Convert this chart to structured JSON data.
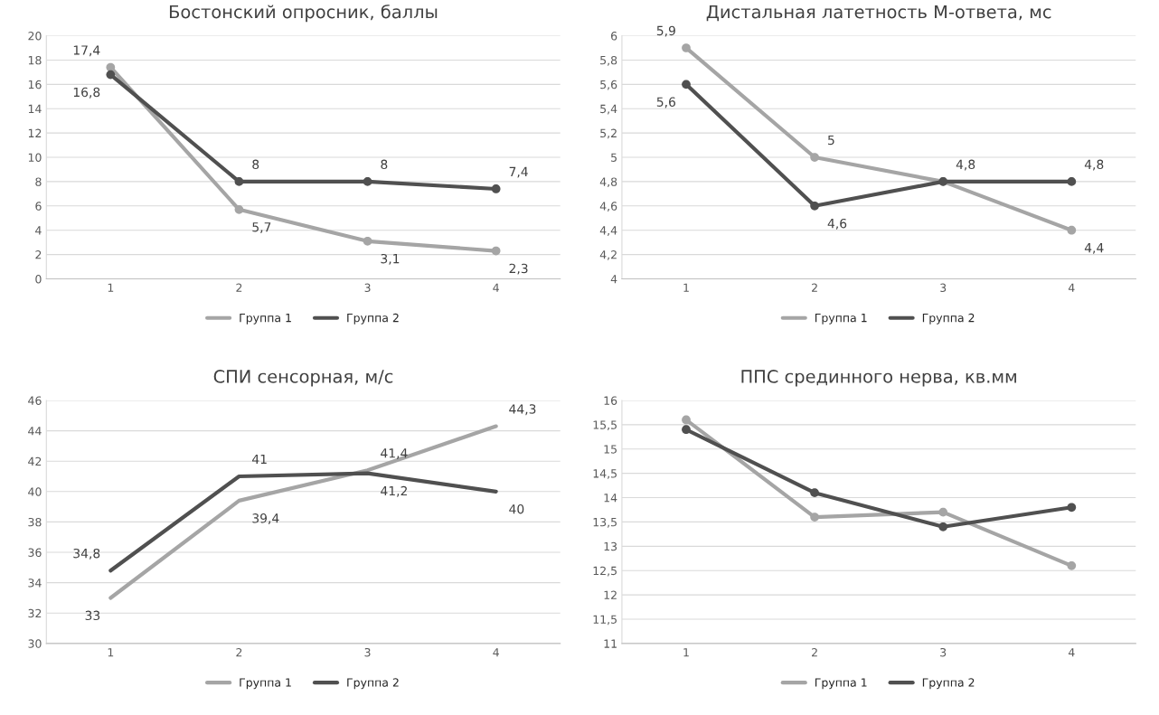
{
  "chart_data": [
    {
      "type": "line",
      "title": "Бостонский опросник, баллы",
      "categories": [
        "1",
        "2",
        "3",
        "4"
      ],
      "ylim": [
        0,
        20
      ],
      "yticks": [
        0,
        2,
        4,
        6,
        8,
        10,
        12,
        14,
        16,
        18,
        20
      ],
      "grid": "y",
      "legend": "bottom",
      "marker": "circle",
      "series": [
        {
          "name": "Группа 1",
          "color": "#a5a5a5",
          "values": [
            17.4,
            5.7,
            3.1,
            2.3
          ],
          "value_labels": [
            "17,4",
            "5,7",
            "3,1",
            "2,3"
          ]
        },
        {
          "name": "Группа 2",
          "color": "#505050",
          "values": [
            16.8,
            8,
            8,
            7.4
          ],
          "value_labels": [
            "16,8",
            "8",
            "8",
            "7,4"
          ]
        }
      ]
    },
    {
      "type": "line",
      "title": "Дистальная латетность М-ответа, мс",
      "categories": [
        "1",
        "2",
        "3",
        "4"
      ],
      "ylim": [
        4,
        6
      ],
      "yticks": [
        4,
        {
          "value": 4.2,
          "label": "4,2"
        },
        {
          "value": 4.4,
          "label": "4,4"
        },
        {
          "value": 4.6,
          "label": "4,6"
        },
        {
          "value": 4.8,
          "label": "4,8"
        },
        5,
        {
          "value": 5.2,
          "label": "5,2"
        },
        {
          "value": 5.4,
          "label": "5,4"
        },
        {
          "value": 5.6,
          "label": "5,6"
        },
        {
          "value": 5.8,
          "label": "5,8"
        },
        6
      ],
      "grid": "y",
      "legend": "bottom",
      "marker": "circle",
      "series": [
        {
          "name": "Группа 1",
          "color": "#a5a5a5",
          "values": [
            5.9,
            5,
            4.8,
            4.4
          ],
          "value_labels": [
            "5,9",
            "5",
            "4,8",
            "4,4"
          ]
        },
        {
          "name": "Группа 2",
          "color": "#505050",
          "values": [
            5.6,
            4.6,
            4.8,
            4.8
          ],
          "value_labels": [
            "5,6",
            "4,6",
            null,
            "4,8"
          ]
        }
      ]
    },
    {
      "type": "line",
      "title": "СПИ сенсорная, м/с",
      "categories": [
        "1",
        "2",
        "3",
        "4"
      ],
      "ylim": [
        30,
        46
      ],
      "yticks": [
        30,
        32,
        34,
        36,
        38,
        40,
        42,
        44,
        46
      ],
      "grid": "y",
      "legend": "bottom",
      "series": [
        {
          "name": "Группа 1",
          "color": "#a5a5a5",
          "values": [
            33,
            39.4,
            41.4,
            44.3
          ],
          "value_labels": [
            "33",
            "39,4",
            "41,4",
            "44,3"
          ]
        },
        {
          "name": "Группа 2",
          "color": "#505050",
          "values": [
            34.8,
            41,
            41.2,
            40
          ],
          "value_labels": [
            "34,8",
            "41",
            "41,2",
            "40"
          ]
        }
      ]
    },
    {
      "type": "line",
      "title": "ППС срединного нерва, кв.мм",
      "categories": [
        "1",
        "2",
        "3",
        "4"
      ],
      "ylim": [
        11,
        16
      ],
      "yticks": [
        11,
        {
          "value": 11.5,
          "label": "11,5"
        },
        12,
        {
          "value": 12.5,
          "label": "12,5"
        },
        13,
        {
          "value": 13.5,
          "label": "13,5"
        },
        14,
        {
          "value": 14.5,
          "label": "14,5"
        },
        15,
        {
          "value": 15.5,
          "label": "15,5"
        },
        16
      ],
      "grid": "y",
      "legend": "bottom",
      "marker": "circle",
      "series": [
        {
          "name": "Группа 1",
          "color": "#a5a5a5",
          "values": [
            15.6,
            13.6,
            13.7,
            12.6
          ]
        },
        {
          "name": "Группа 2",
          "color": "#505050",
          "values": [
            15.4,
            14.1,
            13.4,
            13.8
          ]
        }
      ]
    }
  ]
}
